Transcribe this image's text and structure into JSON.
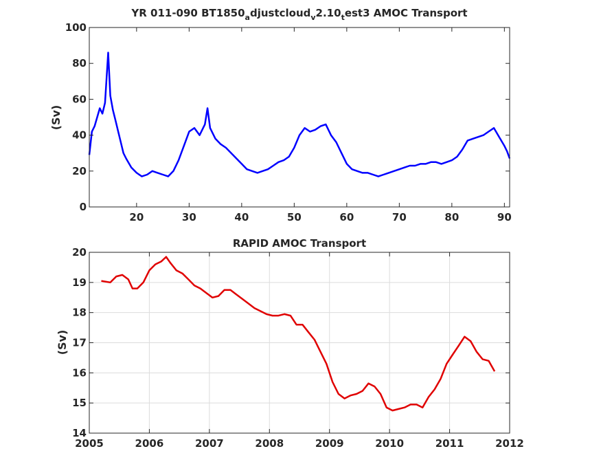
{
  "chart_data": [
    {
      "type": "line",
      "title": "YR 011-090 BT1850",
      "title_parts": [
        "YR 011-090 BT1850",
        "a",
        "djustcloud",
        "v",
        "2.10",
        "t",
        "est3 AMOC Transport"
      ],
      "xlabel": "",
      "ylabel": "(Sv)",
      "xlim": [
        11,
        91
      ],
      "ylim": [
        0,
        100
      ],
      "xticks": [
        20,
        30,
        40,
        50,
        60,
        70,
        80,
        90
      ],
      "yticks": [
        0,
        20,
        40,
        60,
        80,
        100
      ],
      "grid": false,
      "color": "#0000ff",
      "series": [
        {
          "x": [
            11.0,
            11.5,
            12.0,
            12.5,
            13.0,
            13.5,
            14.0,
            14.3,
            14.6,
            15.0,
            15.5,
            16.0,
            16.5,
            17.0,
            17.5,
            18.0,
            19,
            20,
            21,
            22,
            23,
            24,
            25,
            26,
            27,
            28,
            29,
            30,
            31,
            32,
            33,
            33.5,
            34,
            35,
            36,
            37,
            38,
            39,
            40,
            41,
            42,
            43,
            44,
            45,
            46,
            47,
            48,
            49,
            50,
            51,
            52,
            53,
            54,
            55,
            56,
            57,
            58,
            59,
            60,
            61,
            62,
            63,
            64,
            65,
            66,
            67,
            68,
            69,
            70,
            71,
            72,
            73,
            74,
            75,
            76,
            77,
            78,
            79,
            80,
            81,
            82,
            83,
            84,
            85,
            86,
            87,
            88,
            89,
            90,
            90.5,
            91
          ],
          "y": [
            29,
            42,
            45,
            50,
            55,
            52,
            58,
            72,
            86,
            62,
            54,
            48,
            42,
            36,
            30,
            27,
            22,
            19,
            17,
            18,
            20,
            19,
            18,
            17,
            20,
            26,
            34,
            42,
            44,
            40,
            46,
            55,
            44,
            38,
            35,
            33,
            30,
            27,
            24,
            21,
            20,
            19,
            20,
            21,
            23,
            25,
            26,
            28,
            33,
            40,
            44,
            42,
            43,
            45,
            46,
            40,
            36,
            30,
            24,
            21,
            20,
            19,
            19,
            18,
            17,
            18,
            19,
            20,
            21,
            22,
            23,
            23,
            24,
            24,
            25,
            25,
            24,
            25,
            26,
            28,
            32,
            37,
            38,
            39,
            40,
            42,
            44,
            39,
            34,
            31,
            27
          ]
        }
      ]
    },
    {
      "type": "line",
      "title": "RAPID AMOC Transport",
      "xlabel": "",
      "ylabel": "(Sv)",
      "xlim": [
        2005,
        2012
      ],
      "ylim": [
        14,
        20
      ],
      "xticks": [
        2005,
        2006,
        2007,
        2008,
        2009,
        2010,
        2011,
        2012
      ],
      "yticks": [
        14,
        15,
        16,
        17,
        18,
        19,
        20
      ],
      "grid": true,
      "color": "#e00000",
      "series": [
        {
          "x": [
            2005.2,
            2005.35,
            2005.45,
            2005.55,
            2005.65,
            2005.72,
            2005.8,
            2005.9,
            2006.0,
            2006.1,
            2006.2,
            2006.28,
            2006.35,
            2006.45,
            2006.55,
            2006.65,
            2006.75,
            2006.85,
            2006.95,
            2007.05,
            2007.15,
            2007.25,
            2007.35,
            2007.45,
            2007.55,
            2007.65,
            2007.75,
            2007.85,
            2007.95,
            2008.05,
            2008.15,
            2008.25,
            2008.35,
            2008.45,
            2008.55,
            2008.65,
            2008.75,
            2008.85,
            2008.95,
            2009.05,
            2009.15,
            2009.25,
            2009.35,
            2009.45,
            2009.55,
            2009.65,
            2009.75,
            2009.85,
            2009.95,
            2010.05,
            2010.15,
            2010.25,
            2010.35,
            2010.45,
            2010.55,
            2010.65,
            2010.75,
            2010.85,
            2010.95,
            2011.05,
            2011.15,
            2011.25,
            2011.35,
            2011.45,
            2011.55,
            2011.65,
            2011.75
          ],
          "y": [
            19.05,
            19.0,
            19.2,
            19.25,
            19.1,
            18.8,
            18.8,
            19.0,
            19.4,
            19.6,
            19.7,
            19.85,
            19.65,
            19.4,
            19.3,
            19.1,
            18.9,
            18.8,
            18.65,
            18.5,
            18.55,
            18.75,
            18.75,
            18.6,
            18.45,
            18.3,
            18.15,
            18.05,
            17.95,
            17.9,
            17.9,
            17.95,
            17.9,
            17.6,
            17.6,
            17.35,
            17.1,
            16.7,
            16.3,
            15.7,
            15.3,
            15.15,
            15.25,
            15.3,
            15.4,
            15.65,
            15.55,
            15.3,
            14.85,
            14.75,
            14.8,
            14.85,
            14.95,
            14.95,
            14.85,
            15.2,
            15.45,
            15.8,
            16.3,
            16.6,
            16.9,
            17.2,
            17.05,
            16.7,
            16.45,
            16.4,
            16.05
          ]
        }
      ]
    }
  ]
}
